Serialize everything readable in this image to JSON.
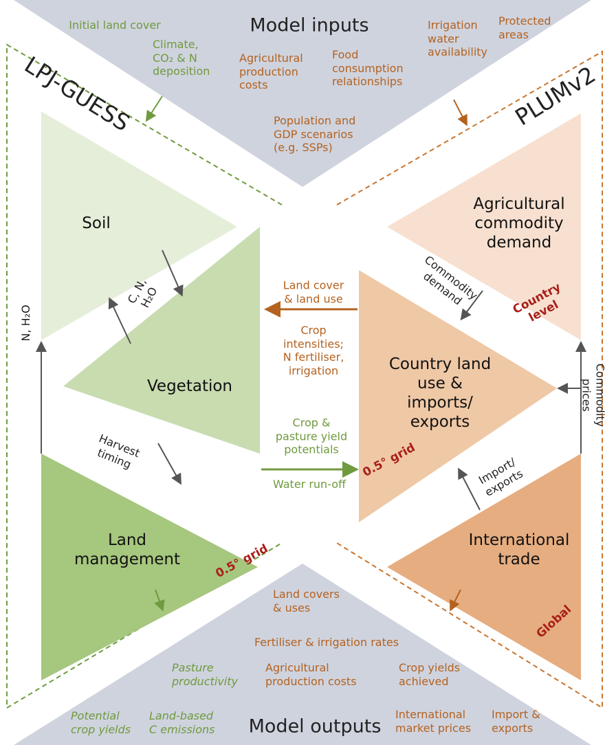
{
  "inputs": {
    "title": "Model inputs",
    "items": [
      "Initial land cover",
      "Climate,\nCO₂ & N\ndeposition",
      "Agricultural\nproduction\ncosts",
      "Food\nconsumption\nrelationships",
      "Population and\nGDP scenarios\n(e.g. SSPs)",
      "Irrigation\nwater\navailability",
      "Protected\nareas"
    ]
  },
  "models": [
    {
      "name": "LPJ-GUESS"
    },
    {
      "name": "PLUMv2"
    }
  ],
  "nodes": [
    {
      "label": "Soil"
    },
    {
      "label": "Vegetation"
    },
    {
      "label": "Land\nmanagement",
      "scale": "0.5° grid"
    },
    {
      "label": "Agricultural\ncommodity\ndemand",
      "scale": "Country level"
    },
    {
      "label": "Country land\nuse &\nimports/\nexports",
      "scale": "0.5° grid"
    },
    {
      "label": "International\ntrade",
      "scale": "Global"
    }
  ],
  "flows": [
    "C, N,\nH₂O",
    "N, H₂O",
    "Harvest\ntiming",
    "Land cover\n& land use",
    "Crop\nintensities;\nN fertiliser,\nirrigation",
    "Crop &\npasture  yield\npotentials",
    "Water run-off",
    "Commodity\ndemand",
    "Commodity prices",
    "Import/\nexports"
  ],
  "outputs": {
    "title": "Model outputs",
    "items": [
      "Land covers\n& uses",
      "Fertiliser & irrigation rates",
      "Pasture\nproductivity",
      "Agricultural\nproduction costs",
      "Crop yields\nachieved",
      "Potential\ncrop yields",
      "Land-based\nC emissions",
      "International\nmarket prices",
      "Import &\nexports"
    ]
  }
}
